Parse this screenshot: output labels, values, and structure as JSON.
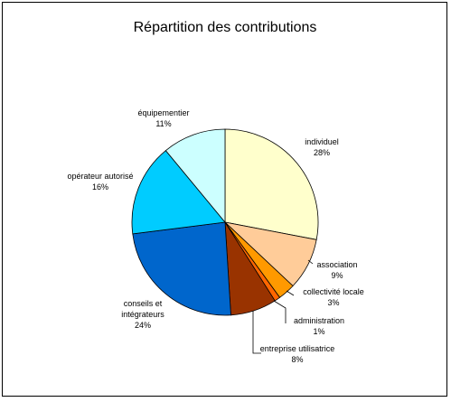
{
  "chart_data": {
    "type": "pie",
    "title": "Répartition des contributions",
    "slices": [
      {
        "label": "individuel",
        "percent_label": "28%",
        "value": 28,
        "color": "#FFFFCC"
      },
      {
        "label": "association",
        "percent_label": "9%",
        "value": 9,
        "color": "#FFCC99"
      },
      {
        "label": "collectivité locale",
        "percent_label": "3%",
        "value": 3,
        "color": "#FF9900"
      },
      {
        "label": "administration",
        "percent_label": "1%",
        "value": 1,
        "color": "#FF6600"
      },
      {
        "label": "entreprise utilisatrice",
        "percent_label": "8%",
        "value": 8,
        "color": "#993300"
      },
      {
        "label": "conseils et intégrateurs",
        "percent_label": "24%",
        "value": 24,
        "color": "#0066CC"
      },
      {
        "label": "opérateur autorisé",
        "percent_label": "16%",
        "value": 16,
        "color": "#00CCFF"
      },
      {
        "label": "équipementier",
        "percent_label": "11%",
        "value": 11,
        "color": "#CCFFFF"
      }
    ]
  }
}
